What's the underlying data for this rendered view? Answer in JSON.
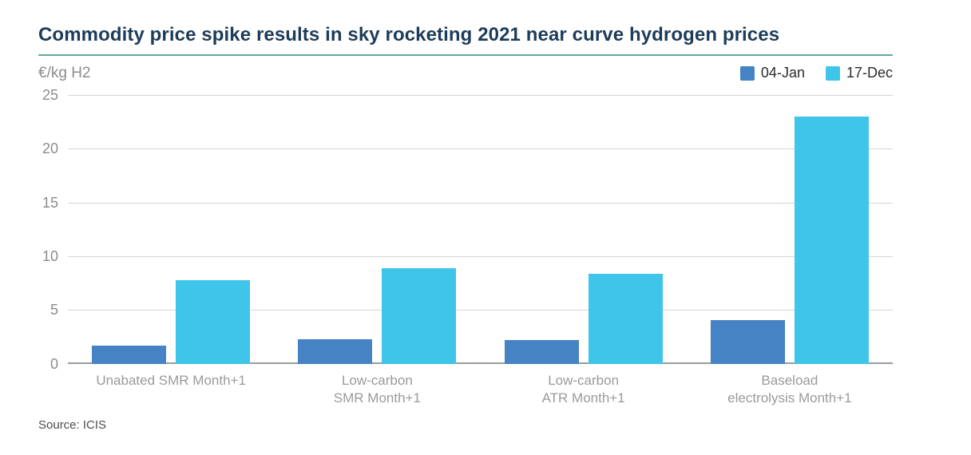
{
  "header": {
    "title_color": "#1d3c59",
    "rule_color": "#63a99b"
  },
  "chart_data": {
    "type": "bar",
    "title": "Commodity price spike results in sky rocketing 2021 near curve hydrogen prices",
    "unit_label": "€/kg H2",
    "categories": [
      "Unabated SMR Month+1",
      "Low-carbon\nSMR Month+1",
      "Low-carbon\nATR Month+1",
      "Baseload\nelectrolysis Month+1"
    ],
    "series": [
      {
        "name": "04-Jan",
        "color": "#4683c4",
        "values": [
          1.7,
          2.3,
          2.2,
          4.1
        ]
      },
      {
        "name": "17-Dec",
        "color": "#3fc5ea",
        "values": [
          7.8,
          8.9,
          8.4,
          23.0
        ]
      }
    ],
    "ylim": [
      0,
      25
    ],
    "yticks": [
      0,
      5,
      10,
      15,
      20,
      25
    ],
    "grid": "horizontal",
    "legend_position": "top-right",
    "source": "Source: ICIS"
  }
}
